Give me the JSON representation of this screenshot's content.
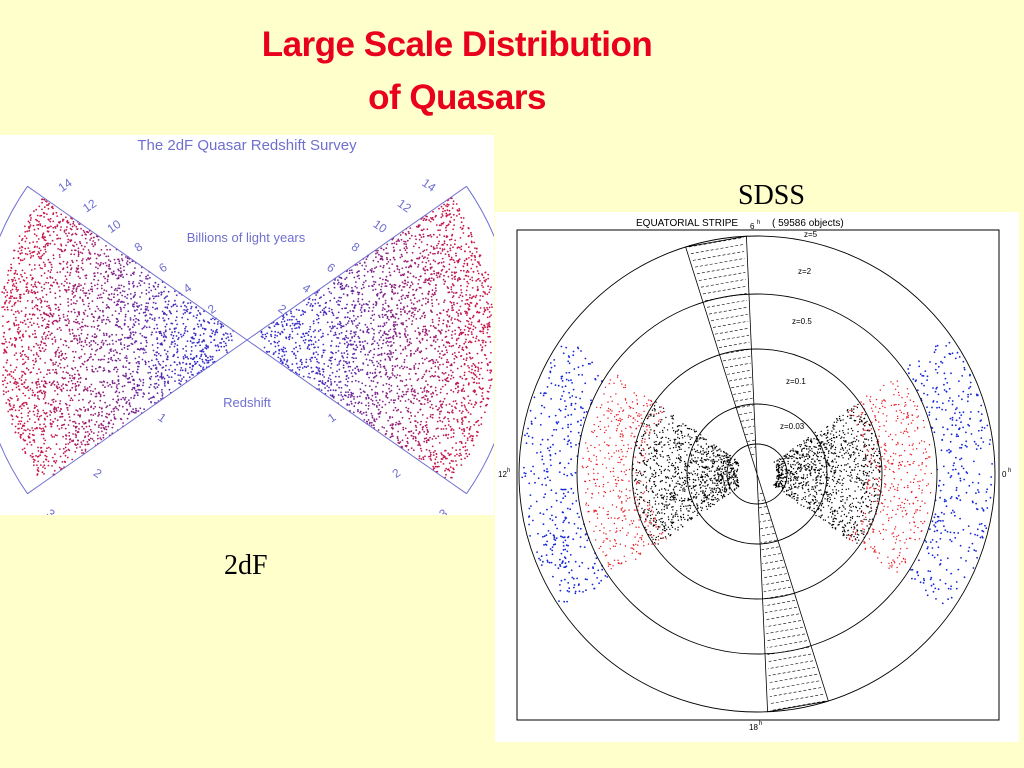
{
  "slide": {
    "title_line1": "Large Scale Distribution",
    "title_line2": "of Quasars",
    "caption_left": "2dF",
    "caption_right": "SDSS"
  },
  "twodf_plot": {
    "title": "The 2dF Quasar Redshift Survey",
    "distance_label": "Billions of light years",
    "redshift_label": "Redshift",
    "distance_ticks": [
      "14",
      "12",
      "10",
      "8",
      "6",
      "4",
      "2"
    ],
    "redshift_ticks": [
      "1",
      "2",
      "3"
    ],
    "colors": {
      "near": "#3A2FC8",
      "far": "#C8184A",
      "frame": "#6F6FCF"
    }
  },
  "sdss_plot": {
    "title": "EQUATORIAL STRIPE",
    "object_count": "( 59586 objects)",
    "ra_labels": {
      "top": "6",
      "left": "12",
      "right": "0",
      "bottom": "18",
      "hour_mark": "h"
    },
    "redshift_rings": [
      "z=0.03",
      "z=0.1",
      "z=0.5",
      "z=2",
      "z=5"
    ],
    "colors": {
      "galaxies": "#000000",
      "lrg": "#E8141C",
      "quasars": "#1426D8",
      "frame": "#000000"
    }
  }
}
